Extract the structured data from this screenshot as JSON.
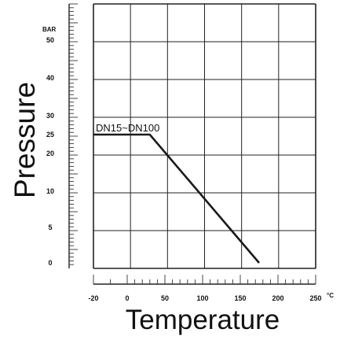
{
  "chart_data": {
    "type": "line",
    "xlabel": "Temperature",
    "ylabel": "Pressure",
    "x_unit": "°C",
    "y_unit": "BAR",
    "x_ticks": [
      "-20",
      "0",
      "50",
      "100",
      "150",
      "200",
      "250"
    ],
    "y_ticks": [
      "0",
      "5",
      "10",
      "20",
      "25",
      "30",
      "40",
      "50"
    ],
    "series": [
      {
        "name": "DN15~DN100",
        "points": [
          {
            "x": -20,
            "y": 25
          },
          {
            "x": 30,
            "y": 25
          },
          {
            "x": 175,
            "y": 0
          }
        ]
      }
    ],
    "grid": true
  }
}
